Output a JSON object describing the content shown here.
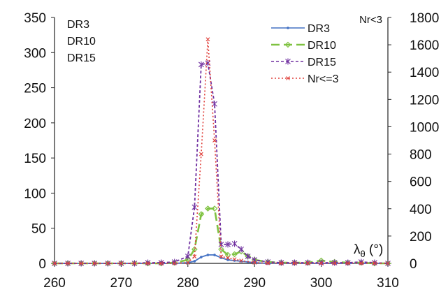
{
  "chart_data": {
    "type": "line",
    "x_axis": {
      "label_main": "λ",
      "label_sub": "θ",
      "label_unit": " (°)",
      "min": 260,
      "max": 310,
      "ticks": [
        260,
        270,
        280,
        290,
        300,
        310
      ]
    },
    "y_left": {
      "min": 0,
      "max": 350,
      "ticks": [
        0,
        50,
        100,
        150,
        200,
        250,
        300,
        350
      ],
      "labels": [
        "DR3",
        "DR10",
        "DR15"
      ]
    },
    "y_right": {
      "min": 0,
      "max": 1800,
      "ticks": [
        0,
        200,
        400,
        600,
        800,
        1000,
        1200,
        1400,
        1600,
        1800
      ],
      "label": "Nr<3"
    },
    "legend_position": "top-right",
    "series": [
      {
        "name": "DR3",
        "axis": "left",
        "color": "#4472c4",
        "dash": "",
        "marker": "dot",
        "x": [
          260,
          262,
          264,
          266,
          268,
          270,
          272,
          274,
          276,
          278,
          280,
          281,
          282,
          283,
          284,
          285,
          286,
          287,
          288,
          289,
          290,
          292,
          294,
          296,
          298,
          300,
          302,
          304,
          306,
          308,
          310
        ],
        "y": [
          0,
          0,
          0,
          0,
          0,
          0,
          0,
          0,
          0,
          0,
          1,
          3,
          9,
          12,
          12,
          8,
          5,
          4,
          3,
          2,
          1,
          0,
          0,
          0,
          0,
          0,
          0,
          0,
          0,
          0,
          0
        ]
      },
      {
        "name": "DR10",
        "axis": "left",
        "color": "#7fc241",
        "dash": "12,6",
        "marker": "diamond",
        "x": [
          260,
          262,
          264,
          266,
          268,
          270,
          272,
          274,
          276,
          278,
          280,
          281,
          282,
          283,
          284,
          285,
          286,
          287,
          288,
          289,
          290,
          292,
          294,
          296,
          298,
          300,
          302,
          304,
          306,
          308,
          310
        ],
        "y": [
          0,
          0,
          0,
          0,
          0,
          0,
          0,
          0,
          0,
          1,
          5,
          20,
          70,
          78,
          78,
          20,
          12,
          13,
          17,
          10,
          5,
          2,
          1,
          1,
          1,
          4,
          2,
          1,
          1,
          0,
          0
        ]
      },
      {
        "name": "DR15",
        "axis": "left",
        "color": "#7030a0",
        "dash": "4,3",
        "marker": "star",
        "x": [
          260,
          262,
          264,
          266,
          268,
          270,
          272,
          274,
          276,
          278,
          280,
          281,
          282,
          283,
          284,
          285,
          286,
          287,
          288,
          289,
          290,
          292,
          294,
          296,
          298,
          300,
          302,
          304,
          306,
          308,
          310
        ],
        "y": [
          0,
          0,
          0,
          0,
          0,
          0,
          0,
          1,
          1,
          2,
          10,
          80,
          283,
          285,
          227,
          27,
          27,
          28,
          20,
          10,
          5,
          2,
          1,
          1,
          1,
          1,
          1,
          1,
          2,
          1,
          0
        ]
      },
      {
        "name": "Nr<=3",
        "axis": "right",
        "color": "#e0403b",
        "dash": "2,3",
        "marker": "x",
        "x": [
          260,
          262,
          264,
          266,
          268,
          270,
          272,
          274,
          276,
          278,
          280,
          281,
          282,
          283,
          284,
          285,
          286,
          287,
          288,
          290,
          292,
          294,
          296,
          298,
          300,
          302,
          304,
          306,
          308,
          310
        ],
        "y": [
          0,
          0,
          0,
          0,
          0,
          0,
          0,
          0,
          0,
          0,
          5,
          50,
          800,
          1640,
          900,
          50,
          40,
          30,
          20,
          5,
          2,
          1,
          1,
          1,
          1,
          1,
          1,
          1,
          1,
          0
        ]
      }
    ]
  }
}
